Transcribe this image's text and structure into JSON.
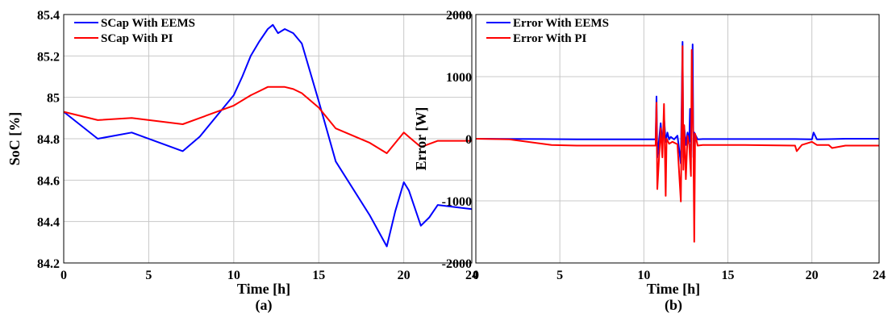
{
  "chart_data": [
    {
      "type": "line",
      "caption": "(a)",
      "xlabel": "Time [h]",
      "ylabel": "SoC [%]",
      "xlim": [
        0,
        24
      ],
      "ylim": [
        84.2,
        85.4
      ],
      "xticks": [
        "0",
        "5",
        "10",
        "15",
        "20",
        "24"
      ],
      "yticks": [
        "84.2",
        "84.4",
        "84.6",
        "84.8",
        "85",
        "85.2",
        "85.4"
      ],
      "grid": true,
      "legend_position": "top-left",
      "series": [
        {
          "name": "SCap With EEMS",
          "color": "#0000ff",
          "x": [
            0,
            2,
            4,
            7,
            8,
            10,
            10.5,
            11,
            11.5,
            12,
            12.3,
            12.6,
            13,
            13.5,
            14,
            15,
            16,
            18,
            19,
            19.5,
            20,
            20.3,
            21,
            21.5,
            22,
            24
          ],
          "y": [
            84.93,
            84.8,
            84.83,
            84.74,
            84.81,
            85.01,
            85.1,
            85.2,
            85.27,
            85.33,
            85.35,
            85.31,
            85.33,
            85.31,
            85.26,
            84.98,
            84.69,
            84.43,
            84.28,
            84.45,
            84.59,
            84.55,
            84.38,
            84.42,
            84.48,
            84.46
          ]
        },
        {
          "name": "SCap With PI",
          "color": "#ff0000",
          "x": [
            0,
            2,
            4,
            7,
            8,
            10,
            11,
            11.5,
            12,
            12.5,
            13,
            13.5,
            14,
            15,
            16,
            18,
            19,
            20,
            21,
            22,
            24
          ],
          "y": [
            84.93,
            84.89,
            84.9,
            84.87,
            84.9,
            84.96,
            85.01,
            85.03,
            85.05,
            85.05,
            85.05,
            85.04,
            85.02,
            84.95,
            84.85,
            84.78,
            84.73,
            84.83,
            84.76,
            84.79,
            84.79
          ]
        }
      ]
    },
    {
      "type": "line",
      "caption": "(b)",
      "xlabel": "Time [h]",
      "ylabel": "Error [W]",
      "xlim": [
        0,
        24
      ],
      "ylim": [
        -2000,
        2000
      ],
      "xticks": [
        "0",
        "5",
        "10",
        "15",
        "20",
        "24"
      ],
      "yticks": [
        "-2000",
        "-1000",
        "0",
        "1000",
        "2000"
      ],
      "grid": true,
      "legend_position": "top-left",
      "series": [
        {
          "name": "Error With EEMS",
          "color": "#0000ff",
          "x": [
            0,
            4,
            6,
            10.7,
            10.75,
            10.8,
            11,
            11.1,
            11.2,
            11.3,
            11.4,
            11.5,
            11.6,
            11.8,
            12,
            12.2,
            12.3,
            12.35,
            12.4,
            12.5,
            12.6,
            12.7,
            12.75,
            12.8,
            12.9,
            12.95,
            13,
            13.2,
            13.5,
            16,
            19,
            20,
            20.1,
            20.3,
            22,
            24
          ],
          "y": [
            0,
            -5,
            -10,
            -10,
            680,
            -300,
            250,
            -100,
            350,
            -50,
            100,
            -10,
            30,
            -10,
            50,
            -400,
            1560,
            -300,
            200,
            -100,
            100,
            -50,
            480,
            -200,
            1520,
            -300,
            100,
            -10,
            -5,
            -5,
            -5,
            -10,
            100,
            -10,
            0,
            0
          ]
        },
        {
          "name": "Error With PI",
          "color": "#ff0000",
          "x": [
            0,
            2,
            4.5,
            6,
            10.7,
            10.75,
            10.8,
            11,
            11.1,
            11.2,
            11.3,
            11.35,
            11.5,
            11.7,
            12,
            12.2,
            12.3,
            12.35,
            12.4,
            12.5,
            12.6,
            12.7,
            12.8,
            12.85,
            12.95,
            13,
            13.05,
            13.2,
            13.5,
            16,
            19,
            19.1,
            19.4,
            20,
            20.3,
            21,
            21.2,
            22,
            24
          ],
          "y": [
            0,
            -10,
            -100,
            -110,
            -110,
            580,
            -810,
            170,
            -300,
            560,
            -920,
            0,
            -80,
            -50,
            -90,
            -1010,
            1490,
            -500,
            220,
            -650,
            50,
            -100,
            -600,
            1430,
            -200,
            -1660,
            80,
            -110,
            -100,
            -100,
            -110,
            -200,
            -100,
            -50,
            -100,
            -100,
            -150,
            -110,
            -110
          ]
        }
      ]
    }
  ]
}
